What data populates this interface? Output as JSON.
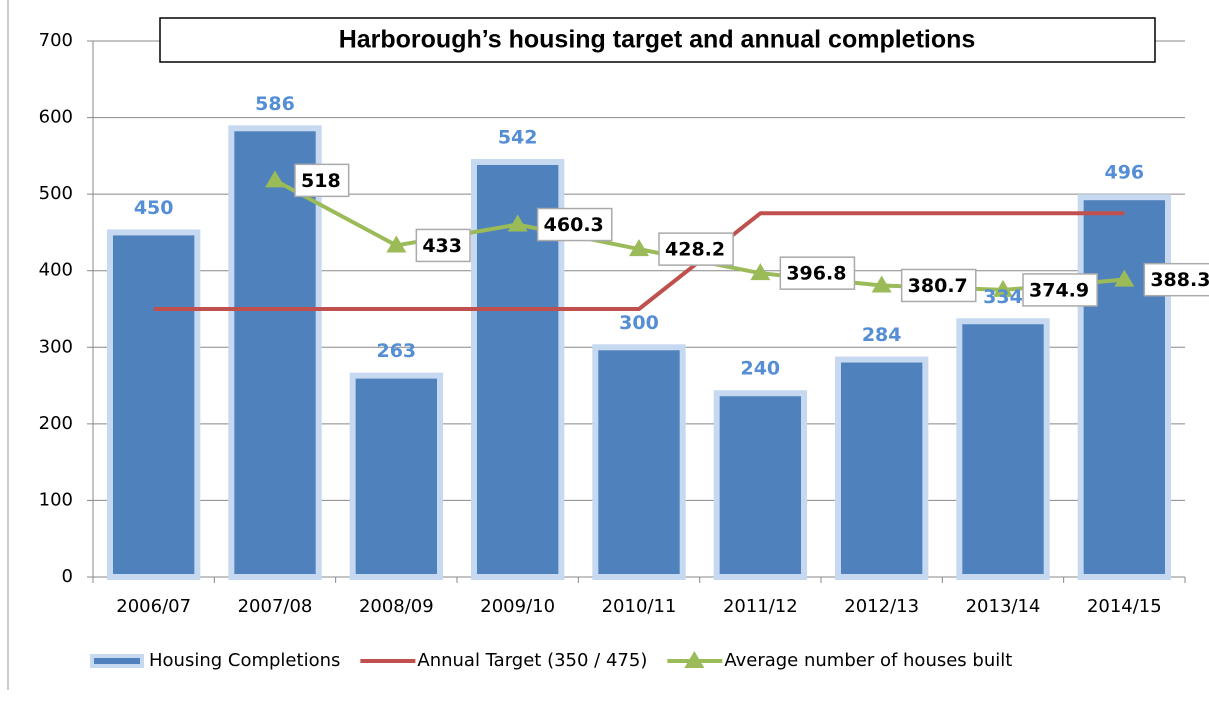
{
  "chart_data": {
    "type": "bar",
    "title": "Harborough’s housing target and annual completions",
    "categories": [
      "2006/07",
      "2007/08",
      "2008/09",
      "2009/10",
      "2010/11",
      "2011/12",
      "2012/13",
      "2013/14",
      "2014/15"
    ],
    "series": [
      {
        "name": "Housing Completions",
        "type": "bar",
        "color": "#4f81bd",
        "values": [
          450,
          586,
          263,
          542,
          300,
          240,
          284,
          334,
          496
        ]
      },
      {
        "name": "Annual Target (350 / 475)",
        "type": "line",
        "color": "#c0504d",
        "values": [
          350,
          350,
          350,
          350,
          350,
          475,
          475,
          475,
          475
        ]
      },
      {
        "name": "Average number of houses built",
        "type": "line",
        "marker": "triangle",
        "color": "#9bbb59",
        "values": [
          null,
          518,
          433,
          460.3,
          428.2,
          396.8,
          380.7,
          374.9,
          388.3
        ]
      }
    ],
    "ylim": [
      0,
      700
    ],
    "yticks": [
      0,
      100,
      200,
      300,
      400,
      500,
      600,
      700
    ],
    "grid": true,
    "legend": "bottom"
  }
}
